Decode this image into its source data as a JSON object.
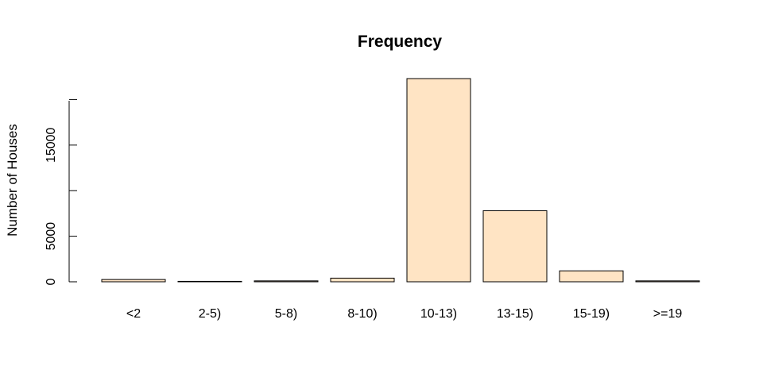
{
  "chart_data": {
    "type": "bar",
    "title": "Frequency",
    "xlabel": "",
    "ylabel": "Number of Houses",
    "categories": [
      "<2",
      "2-5)",
      "5-8)",
      "8-10)",
      "10-13)",
      "13-15)",
      "15-19)",
      ">=19"
    ],
    "values": [
      250,
      50,
      100,
      400,
      22300,
      7800,
      1200,
      100
    ],
    "y_ticks": [
      0,
      5000,
      10000,
      15000,
      20000
    ],
    "y_tick_labels": [
      "0",
      "5000",
      "",
      "15000",
      ""
    ],
    "ylim": [
      0,
      22300
    ],
    "bar_color": "#FFE4C4",
    "grid": false
  }
}
